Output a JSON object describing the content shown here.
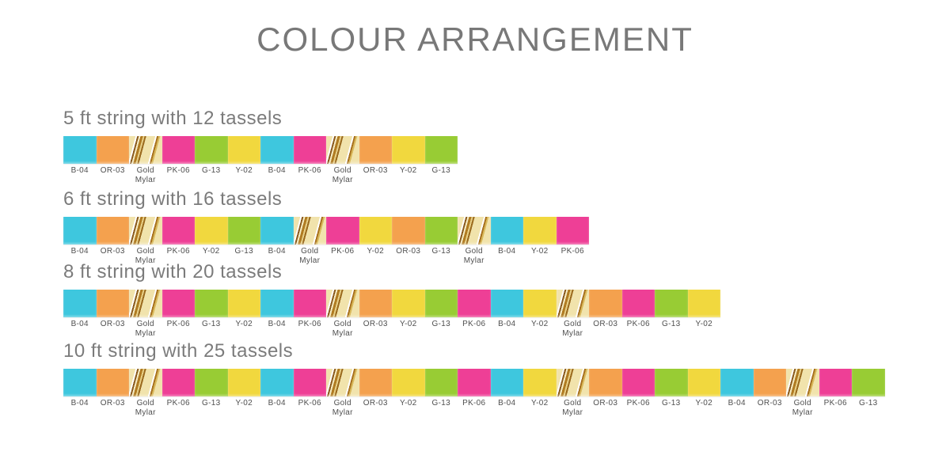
{
  "title": "COLOUR ARRANGEMENT",
  "swatch_colors": {
    "B-04": "#3ec7de",
    "OR-03": "#f4a14e",
    "Gold Mylar": "gold-mylar-stripes",
    "PK-06": "#ee3f96",
    "G-13": "#98cc34",
    "Y-02": "#f1d83e"
  },
  "rows": [
    {
      "title": "5 ft string with 12 tassels",
      "tassels": [
        "B-04",
        "OR-03",
        "Gold Mylar",
        "PK-06",
        "G-13",
        "Y-02",
        "B-04",
        "PK-06",
        "Gold Mylar",
        "OR-03",
        "Y-02",
        "G-13"
      ]
    },
    {
      "title": "6 ft string with 16 tassels",
      "tassels": [
        "B-04",
        "OR-03",
        "Gold Mylar",
        "PK-06",
        "Y-02",
        "G-13",
        "B-04",
        "Gold Mylar",
        "PK-06",
        "Y-02",
        "OR-03",
        "G-13",
        "Gold Mylar",
        "B-04",
        "Y-02",
        "PK-06"
      ]
    },
    {
      "title": "8 ft string with 20 tassels",
      "tassels": [
        "B-04",
        "OR-03",
        "Gold Mylar",
        "PK-06",
        "G-13",
        "Y-02",
        "B-04",
        "PK-06",
        "Gold Mylar",
        "OR-03",
        "Y-02",
        "G-13",
        "PK-06",
        "B-04",
        "Y-02",
        "Gold Mylar",
        "OR-03",
        "PK-06",
        "G-13",
        "Y-02"
      ]
    },
    {
      "title": "10 ft string with 25 tassels",
      "tassels": [
        "B-04",
        "OR-03",
        "Gold Mylar",
        "PK-06",
        "G-13",
        "Y-02",
        "B-04",
        "PK-06",
        "Gold Mylar",
        "OR-03",
        "Y-02",
        "G-13",
        "PK-06",
        "B-04",
        "Y-02",
        "Gold Mylar",
        "OR-03",
        "PK-06",
        "G-13",
        "Y-02",
        "B-04",
        "OR-03",
        "Gold Mylar",
        "PK-06",
        "G-13"
      ]
    }
  ]
}
